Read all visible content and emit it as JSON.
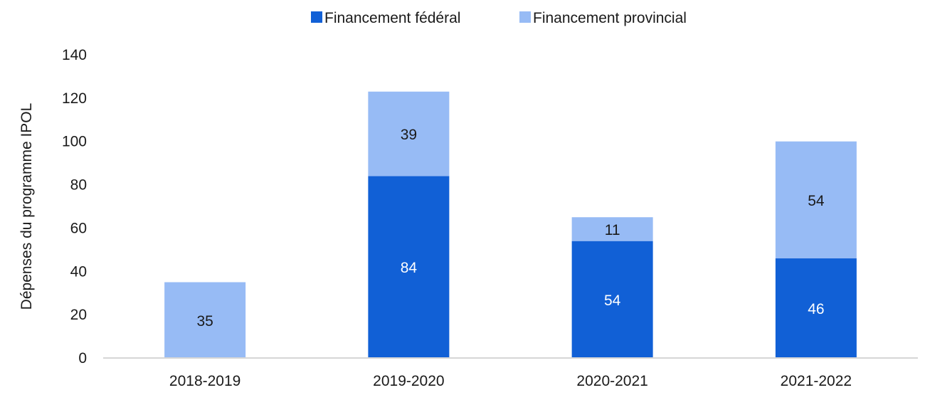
{
  "chart_data": {
    "type": "bar",
    "stacked": true,
    "title": "",
    "xlabel": "",
    "ylabel": "Dépenses du programme IPOL",
    "ylim": [
      0,
      140
    ],
    "yticks": [
      0,
      20,
      40,
      60,
      80,
      100,
      120,
      140
    ],
    "grid": false,
    "legend_position": "top-center",
    "categories": [
      "2018-2019",
      "2019-2020",
      "2020-2021",
      "2021-2022"
    ],
    "series": [
      {
        "name": "Financement fédéral",
        "color": "#1160d6",
        "label_color": "#ffffff",
        "values": [
          0,
          84,
          54,
          46
        ],
        "labels": [
          "",
          "84",
          "54",
          "46"
        ]
      },
      {
        "name": "Financement provincial",
        "color": "#97bbf5",
        "label_color": "#1a1a1a",
        "values": [
          35,
          39,
          11,
          54
        ],
        "labels": [
          "35",
          "39",
          "11",
          "54"
        ]
      }
    ]
  }
}
